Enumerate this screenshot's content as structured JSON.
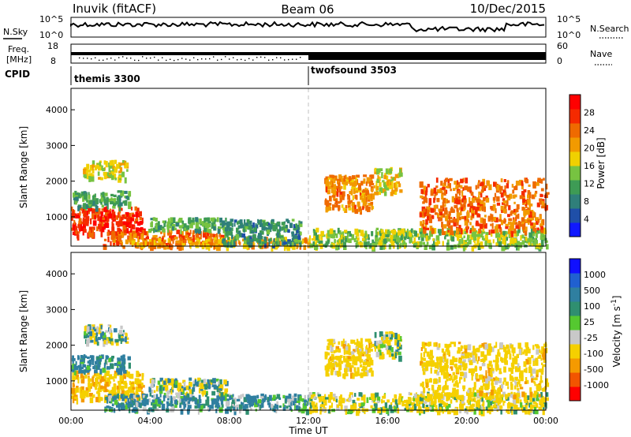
{
  "header": {
    "station": "Inuvik (fitACF)",
    "beam": "Beam 06",
    "date": "10/Dec/2015"
  },
  "nsky_panel": {
    "left_label": "N.Sky",
    "right_label": "N.Search",
    "ticks_top": "10^5",
    "ticks_bottom": "10^0"
  },
  "freq_panel": {
    "left_label_1": "Freq.",
    "left_label_2": "[MHz]",
    "left_ticks": [
      "18",
      "8"
    ],
    "right_label": "Nave",
    "right_ticks": [
      "60",
      "0"
    ]
  },
  "cpid_panel": {
    "label": "CPID",
    "programs": [
      {
        "name": "themis 3300",
        "start_hour": 0
      },
      {
        "name": "twofsound 3503",
        "start_hour": 12
      }
    ]
  },
  "x_axis": {
    "title": "Time UT",
    "ticks": [
      "00:00",
      "04:00",
      "08:00",
      "12:00",
      "16:00",
      "20:00",
      "00:00"
    ]
  },
  "chart_data": [
    {
      "type": "heatmap",
      "name": "power",
      "xlabel": "Time UT",
      "ylabel": "Slant Range [km]",
      "xlim_hours": [
        0,
        24
      ],
      "ylim": [
        180,
        4600
      ],
      "yticks": [
        "1000",
        "2000",
        "3000",
        "4000"
      ],
      "colorbar": {
        "label": "Power [dB]",
        "ticks": [
          "4",
          "8",
          "12",
          "16",
          "20",
          "24",
          "28"
        ],
        "colors": [
          "#1018ff",
          "#1f4fa8",
          "#2f7f7a",
          "#3e9b55",
          "#77c341",
          "#f0d000",
          "#f29a00",
          "#ef6a00",
          "#f52a00",
          "#ff0000"
        ]
      },
      "regions": [
        {
          "t0": 0.0,
          "t1": 3.6,
          "r0": 500,
          "r1": 1300,
          "value_db": 27
        },
        {
          "t0": 1.6,
          "t1": 7.6,
          "r0": 200,
          "r1": 650,
          "value_db": 24
        },
        {
          "t0": 3.0,
          "t1": 12.0,
          "r0": 200,
          "r1": 450,
          "value_db": 20
        },
        {
          "t0": 0.0,
          "t1": 2.9,
          "r0": 1300,
          "r1": 1750,
          "value_db": 12
        },
        {
          "t0": 0.6,
          "t1": 2.8,
          "r0": 2100,
          "r1": 2600,
          "value_db": 17
        },
        {
          "t0": 3.9,
          "t1": 7.8,
          "r0": 650,
          "r1": 1000,
          "value_db": 12
        },
        {
          "t0": 7.6,
          "t1": 11.6,
          "r0": 250,
          "r1": 950,
          "value_db": 10
        },
        {
          "t0": 12.0,
          "t1": 24.0,
          "r0": 180,
          "r1": 700,
          "value_db": 15
        },
        {
          "t0": 12.8,
          "t1": 15.2,
          "r0": 1200,
          "r1": 2200,
          "value_db": 22
        },
        {
          "t0": 17.6,
          "t1": 24.0,
          "r0": 600,
          "r1": 2100,
          "value_db": 24
        },
        {
          "t0": 15.3,
          "t1": 16.6,
          "r0": 1700,
          "r1": 2400,
          "value_db": 18
        }
      ]
    },
    {
      "type": "heatmap",
      "name": "velocity",
      "xlabel": "Time UT",
      "ylabel": "Slant Range [km]",
      "xlim_hours": [
        0,
        24
      ],
      "ylim": [
        180,
        4600
      ],
      "yticks": [
        "1000",
        "2000",
        "3000",
        "4000"
      ],
      "colorbar": {
        "label": "Velocity [m s^-1]",
        "ticks": [
          "-1000",
          "-500",
          "-100",
          "-25",
          "25",
          "100",
          "500",
          "1000"
        ],
        "colors": [
          "#ff0000",
          "#f25500",
          "#f59a00",
          "#f5d000",
          "#c8c8c8",
          "#55c830",
          "#2f8f70",
          "#2f7fa0",
          "#2060d0",
          "#1010ff"
        ]
      },
      "regions": [
        {
          "t0": 0.0,
          "t1": 3.6,
          "r0": 500,
          "r1": 1300,
          "value_ms": -400
        },
        {
          "t0": 0.0,
          "t1": 2.9,
          "r0": 1300,
          "r1": 1750,
          "value_ms": 200
        },
        {
          "t0": 0.6,
          "t1": 2.8,
          "r0": 2100,
          "r1": 2600,
          "value_ms": 0
        },
        {
          "t0": 3.9,
          "t1": 7.8,
          "r0": 650,
          "r1": 1100,
          "value_ms": 0
        },
        {
          "t0": 1.6,
          "t1": 12.0,
          "r0": 200,
          "r1": 650,
          "value_ms": 150
        },
        {
          "t0": 12.0,
          "t1": 24.0,
          "r0": 180,
          "r1": 700,
          "value_ms": -150
        },
        {
          "t0": 12.8,
          "t1": 15.2,
          "r0": 1200,
          "r1": 2200,
          "value_ms": -300
        },
        {
          "t0": 17.6,
          "t1": 24.0,
          "r0": 600,
          "r1": 2100,
          "value_ms": -300
        },
        {
          "t0": 15.3,
          "t1": 16.6,
          "r0": 1700,
          "r1": 2400,
          "value_ms": -100
        }
      ]
    }
  ]
}
